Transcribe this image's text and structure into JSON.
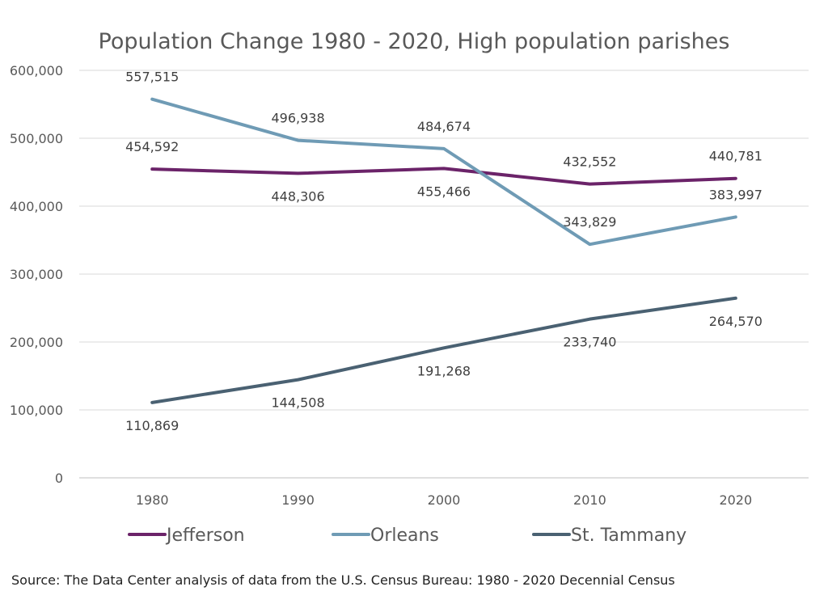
{
  "chart_data": {
    "type": "line",
    "title": "Population Change 1980 - 2020, High population parishes",
    "categories": [
      "1980",
      "1990",
      "2000",
      "2010",
      "2020"
    ],
    "y_ticks": [
      "600,000",
      "500,000",
      "400,000",
      "300,000",
      "200,000",
      "100,000",
      "0"
    ],
    "ylim": [
      0,
      600000
    ],
    "grid": true,
    "legend_position": "bottom",
    "series": [
      {
        "name": "Jefferson",
        "color": "#6b2369",
        "values": [
          454592,
          448306,
          455466,
          432552,
          440781
        ],
        "labels": [
          "454,592",
          "448,306",
          "455,466",
          "432,552",
          "440,781"
        ]
      },
      {
        "name": "Orleans",
        "color": "#6f9bb5",
        "values": [
          557515,
          496938,
          484674,
          343829,
          383997
        ],
        "labels": [
          "557,515",
          "496,938",
          "484,674",
          "343,829",
          "383,997"
        ]
      },
      {
        "name": "St. Tammany",
        "color": "#4a6172",
        "values": [
          110869,
          144508,
          191268,
          233740,
          264570
        ],
        "labels": [
          "110,869",
          "144,508",
          "191,268",
          "233,740",
          "264,570"
        ]
      }
    ]
  },
  "source": "Source: The Data Center analysis of data from the U.S. Census Bureau: 1980 - 2020 Decennial Census"
}
